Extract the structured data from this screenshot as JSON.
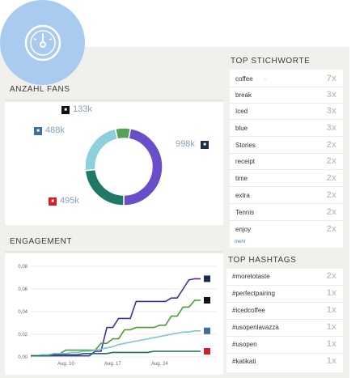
{
  "sections": {
    "top_keywords": "TOP STICHWORTE",
    "fans": "ANZAHL FANS",
    "engagement": "ENGAGEMENT",
    "top_hashtags": "TOP HASHTAGS"
  },
  "keywords": [
    {
      "label": "coffee",
      "count": "7x"
    },
    {
      "label": "break",
      "count": "3x"
    },
    {
      "label": "Iced",
      "count": "3x"
    },
    {
      "label": "blue",
      "count": "3x"
    },
    {
      "label": "Stories",
      "count": "2x"
    },
    {
      "label": "receipt",
      "count": "2x"
    },
    {
      "label": "time",
      "count": "2x"
    },
    {
      "label": "extra",
      "count": "2x"
    },
    {
      "label": "Tennis",
      "count": "2x"
    },
    {
      "label": "enjoy",
      "count": "2x"
    }
  ],
  "keywords_more": "mehr",
  "hashtags": [
    {
      "label": "#moretotaste",
      "count": "2x"
    },
    {
      "label": "#perfectpairing",
      "count": "1x"
    },
    {
      "label": "#icedcoffee",
      "count": "1x"
    },
    {
      "label": "#usopenlavazza",
      "count": "1x"
    },
    {
      "label": "#usopen",
      "count": "1x"
    },
    {
      "label": "#katikati",
      "count": "1x"
    }
  ],
  "fans": {
    "brands": [
      {
        "label": "998k",
        "value": 998,
        "color": "#6a4dc8"
      },
      {
        "label": "495k",
        "value": 495,
        "color": "#1e7a66"
      },
      {
        "label": "488k",
        "value": 488,
        "color": "#8ecfdc"
      },
      {
        "label": "133k",
        "value": 133,
        "color": "#55a356"
      }
    ]
  },
  "chart_data": {
    "type": "line",
    "x_ticks": [
      "Aug. 10",
      "Aug. 17",
      "Aug. 24"
    ],
    "y_ticks": [
      "0,00",
      "0,02",
      "0,04",
      "0,06",
      "0,08"
    ],
    "ylim": [
      0,
      0.08
    ],
    "series": [
      {
        "color": "#4a2aa3",
        "values": [
          0.001,
          0.001,
          0.001,
          0.001,
          0.001,
          0.001,
          0.001,
          0.001,
          0.001,
          0.001,
          0.001,
          0.005,
          0.005,
          0.026,
          0.026,
          0.034,
          0.034,
          0.034,
          0.049,
          0.049,
          0.049,
          0.049,
          0.049,
          0.049,
          0.052,
          0.052,
          0.06,
          0.068,
          0.069,
          0.069
        ]
      },
      {
        "color": "#4c9c3e",
        "values": [
          0.001,
          0.001,
          0.001,
          0.001,
          0.003,
          0.003,
          0.006,
          0.006,
          0.006,
          0.006,
          0.006,
          0.006,
          0.012,
          0.012,
          0.016,
          0.016,
          0.024,
          0.024,
          0.026,
          0.026,
          0.026,
          0.026,
          0.028,
          0.028,
          0.036,
          0.036,
          0.044,
          0.044,
          0.05,
          0.05
        ]
      },
      {
        "color": "#82c3d6",
        "values": [
          0.001,
          0.001,
          0.002,
          0.002,
          0.003,
          0.003,
          0.003,
          0.004,
          0.004,
          0.005,
          0.005,
          0.006,
          0.007,
          0.008,
          0.009,
          0.011,
          0.012,
          0.013,
          0.014,
          0.015,
          0.016,
          0.017,
          0.018,
          0.019,
          0.02,
          0.021,
          0.022,
          0.022,
          0.023,
          0.023
        ]
      },
      {
        "color": "#1e6e5e",
        "values": [
          0.001,
          0.001,
          0.001,
          0.001,
          0.002,
          0.002,
          0.002,
          0.002,
          0.002,
          0.003,
          0.003,
          0.003,
          0.003,
          0.003,
          0.004,
          0.004,
          0.004,
          0.004,
          0.004,
          0.004,
          0.004,
          0.005,
          0.005,
          0.005,
          0.005,
          0.005,
          0.005,
          0.005,
          0.005,
          0.005
        ]
      }
    ]
  }
}
